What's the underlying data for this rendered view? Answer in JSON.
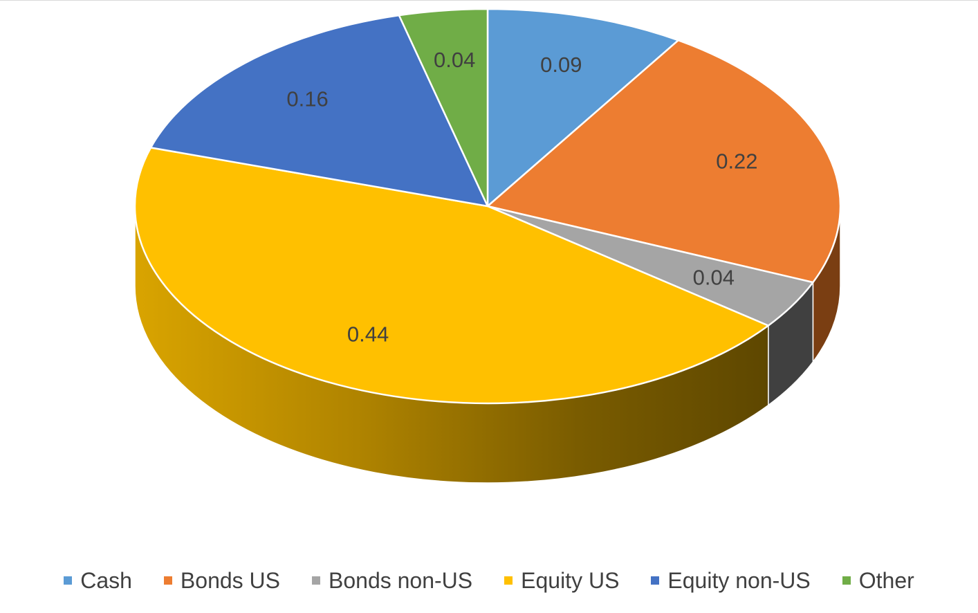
{
  "chart_data": {
    "type": "pie",
    "style": "3d",
    "title": "",
    "categories": [
      "Cash",
      "Bonds US",
      "Bonds non-US",
      "Equity US",
      "Equity non-US",
      "Other"
    ],
    "values": [
      0.09,
      0.22,
      0.04,
      0.44,
      0.16,
      0.04
    ],
    "labels": [
      "0.09",
      "0.22",
      "0.04",
      "0.44",
      "0.16",
      "0.04"
    ],
    "colors": [
      "#5B9BD5",
      "#ED7D31",
      "#A5A5A5",
      "#FFC000",
      "#4472C4",
      "#70AD47"
    ],
    "side_colors": [
      "#2E5F8E",
      "#7A3E12",
      "#404040",
      "#7A5C00",
      "#243E70",
      "#3A6122"
    ],
    "start": "12 o'clock",
    "direction": "clockwise",
    "legend_position": "bottom"
  }
}
